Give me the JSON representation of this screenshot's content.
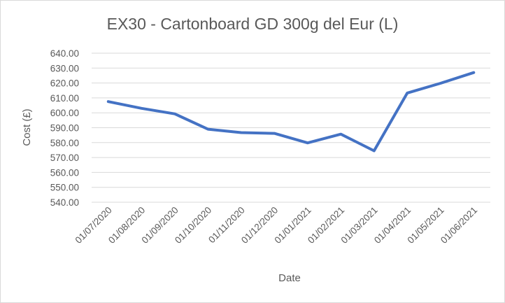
{
  "chart_data": {
    "type": "line",
    "title": "EX30 - Cartonboard GD 300g del Eur (L)",
    "xlabel": "Date",
    "ylabel": "Cost (£)",
    "ylim": [
      540,
      640
    ],
    "yticks": [
      "540.00",
      "550.00",
      "560.00",
      "570.00",
      "580.00",
      "590.00",
      "600.00",
      "610.00",
      "620.00",
      "630.00",
      "640.00"
    ],
    "grid": true,
    "legend": "none",
    "line_color": "#4472c4",
    "categories": [
      "01/07/2020",
      "01/08/2020",
      "01/09/2020",
      "01/10/2020",
      "01/11/2020",
      "01/12/2020",
      "01/01/2021",
      "01/02/2021",
      "01/03/2021",
      "01/04/2021",
      "01/05/2021",
      "01/06/2021"
    ],
    "values": [
      607.5,
      603,
      599.3,
      589,
      586.7,
      586.2,
      579.8,
      585.7,
      574.5,
      613.3,
      619.8,
      627
    ]
  }
}
